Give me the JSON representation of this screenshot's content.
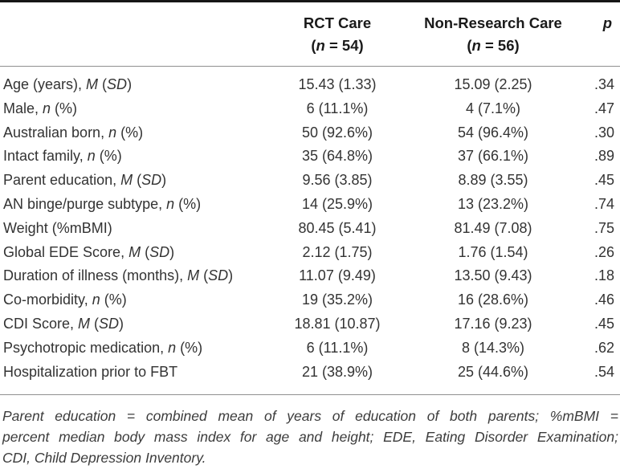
{
  "table": {
    "header": {
      "rct": {
        "line1": "RCT Care",
        "line2": "(*n* = 54)"
      },
      "nrc": {
        "line1": "Non-Research Care",
        "line2": "(*n* = 56)"
      },
      "p": "*p*"
    },
    "rows": [
      {
        "label": "Age (years), *M* (*SD*)",
        "rct": "15.43 (1.33)",
        "nrc": "15.09 (2.25)",
        "p": ".34"
      },
      {
        "label": "Male, *n* (%)",
        "rct": "6 (11.1%)",
        "nrc": "4 (7.1%)",
        "p": ".47"
      },
      {
        "label": "Australian born, *n* (%)",
        "rct": "50 (92.6%)",
        "nrc": "54 (96.4%)",
        "p": ".30"
      },
      {
        "label": "Intact family, *n* (%)",
        "rct": "35 (64.8%)",
        "nrc": "37 (66.1%)",
        "p": ".89"
      },
      {
        "label": "Parent education, *M* (*SD*)",
        "rct": "9.56 (3.85)",
        "nrc": "8.89 (3.55)",
        "p": ".45"
      },
      {
        "label": "AN binge/purge subtype, *n* (%)",
        "rct": "14 (25.9%)",
        "nrc": "13 (23.2%)",
        "p": ".74"
      },
      {
        "label": "Weight (%mBMI)",
        "rct": "80.45 (5.41)",
        "nrc": "81.49 (7.08)",
        "p": ".75"
      },
      {
        "label": "Global EDE Score, *M* (*SD*)",
        "rct": "2.12 (1.75)",
        "nrc": "1.76 (1.54)",
        "p": ".26"
      },
      {
        "label": "Duration of illness (months), *M* (*SD*)",
        "rct": "11.07 (9.49)",
        "nrc": "13.50 (9.43)",
        "p": ".18"
      },
      {
        "label": "Co-morbidity, *n* (%)",
        "rct": "19 (35.2%)",
        "nrc": "16 (28.6%)",
        "p": ".46"
      },
      {
        "label": "CDI Score, *M* (*SD*)",
        "rct": "18.81 (10.87)",
        "nrc": "17.16 (9.23)",
        "p": ".45"
      },
      {
        "label": "Psychotropic medication, *n* (%)",
        "rct": "6 (11.1%)",
        "nrc": "8 (14.3%)",
        "p": ".62"
      },
      {
        "label": "Hospitalization prior to FBT",
        "rct": "21 (38.9%)",
        "nrc": "25 (44.6%)",
        "p": ".54"
      }
    ]
  },
  "footnote": {
    "lines": [
      "Parent education = combined mean of years of education of both parents; %mBMI =",
      "percent median body mass index for age and height; EDE, Eating Disorder Examination;",
      "CDI, Child Depression Inventory."
    ]
  },
  "colors": {
    "top_rule": "#161616",
    "thin_rule": "#8f8f8f",
    "body_text": "#333333",
    "header_text": "#1a1a1a",
    "footnote_text": "#3c3c3c"
  }
}
